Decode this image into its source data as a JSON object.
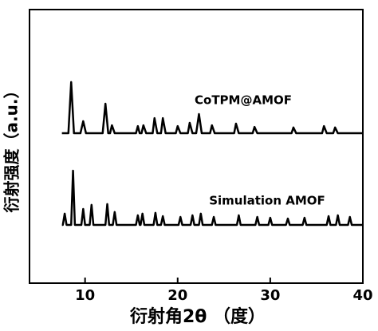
{
  "chart_data": {
    "type": "line",
    "x_label": "衍射角2θ （度）",
    "y_label": "衍射强度（a.u.）",
    "xlim": [
      4,
      40
    ],
    "xticks": [
      10,
      20,
      30,
      40
    ],
    "ylim": [
      0,
      100
    ],
    "annotations": [
      "CoTPM@AMOF",
      "Simulation AMOF"
    ],
    "series": [
      {
        "color": "#000000",
        "x": [
          7.5,
          8.2,
          8.5,
          8.8,
          9.5,
          9.8,
          10.1,
          11.9,
          12.2,
          12.5,
          12.7,
          12.9,
          13.2,
          15.5,
          15.7,
          15.9,
          16.1,
          16.3,
          16.6,
          17.3,
          17.5,
          17.8,
          18.2,
          18.4,
          18.7,
          19.8,
          20.0,
          20.3,
          21.1,
          21.3,
          21.6,
          22.0,
          22.3,
          22.6,
          23.5,
          23.7,
          24.0,
          26.1,
          26.3,
          26.6,
          28.1,
          28.3,
          28.6,
          32.3,
          32.5,
          32.8,
          35.6,
          35.8,
          36.1,
          36.8,
          37.0,
          37.3,
          40
        ],
        "values": [
          54.8,
          54.8,
          73.5,
          54.8,
          54.8,
          59.2,
          54.8,
          54.8,
          65.6,
          54.8,
          54.8,
          57.7,
          54.8,
          54.8,
          57.4,
          54.8,
          54.8,
          57.7,
          54.8,
          54.8,
          60.3,
          54.8,
          54.8,
          60.3,
          54.8,
          54.8,
          57.4,
          54.8,
          54.8,
          58.6,
          54.8,
          54.8,
          61.8,
          54.8,
          54.8,
          57.7,
          54.8,
          54.8,
          58.3,
          54.8,
          54.8,
          57.1,
          54.8,
          54.8,
          56.9,
          54.8,
          54.8,
          57.4,
          54.8,
          54.8,
          56.9,
          54.8,
          54.8
        ]
      },
      {
        "color": "#000000",
        "x": [
          7.5,
          7.6,
          7.8,
          8.0,
          8.5,
          8.7,
          8.9,
          9.6,
          9.8,
          10.0,
          10.5,
          10.7,
          10.9,
          12.2,
          12.4,
          12.6,
          13.0,
          13.2,
          13.4,
          15.5,
          15.7,
          15.9,
          16.0,
          16.2,
          16.4,
          17.4,
          17.6,
          17.8,
          18.2,
          18.4,
          18.6,
          20.1,
          20.3,
          20.5,
          21.4,
          21.6,
          21.8,
          22.3,
          22.5,
          22.7,
          23.7,
          23.9,
          24.1,
          26.4,
          26.6,
          26.8,
          28.4,
          28.6,
          28.8,
          29.8,
          30.0,
          30.2,
          31.7,
          31.9,
          32.1,
          33.5,
          33.7,
          33.9,
          36.1,
          36.3,
          36.5,
          37.1,
          37.3,
          37.5,
          38.4,
          38.6,
          38.8,
          40
        ],
        "values": [
          21.3,
          21.3,
          25.4,
          21.3,
          21.3,
          41.1,
          21.3,
          21.3,
          27.1,
          21.3,
          21.3,
          28.6,
          21.3,
          21.3,
          28.9,
          21.3,
          21.3,
          26.0,
          21.3,
          21.3,
          24.8,
          21.3,
          21.3,
          25.4,
          21.3,
          21.3,
          25.7,
          21.3,
          21.3,
          24.5,
          21.3,
          21.3,
          24.2,
          21.3,
          21.3,
          24.8,
          21.3,
          21.3,
          25.4,
          21.3,
          21.3,
          24.2,
          21.3,
          21.3,
          24.8,
          21.3,
          21.3,
          24.2,
          21.3,
          21.3,
          23.9,
          21.3,
          21.3,
          23.6,
          21.3,
          21.3,
          23.9,
          21.3,
          21.3,
          24.5,
          21.3,
          21.3,
          24.8,
          21.3,
          21.3,
          24.2,
          21.3,
          21.3
        ]
      }
    ]
  }
}
